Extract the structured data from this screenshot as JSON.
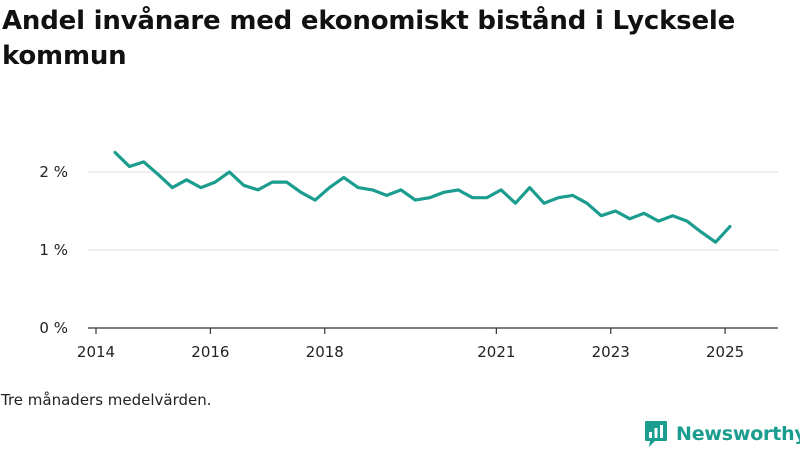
{
  "title": "Andel invånare med ekonomiskt bistånd i Lycksele kommun",
  "note": "Tre månaders medelvärden.",
  "brand": "Newsworthy",
  "colors": {
    "line": "#1a9c8e",
    "grid": "#dddddd",
    "axis": "#333333",
    "brand": "#1a9c8e"
  },
  "chart_data": {
    "type": "line",
    "title": "Andel invånare med ekonomiskt bistånd i Lycksele kommun",
    "xlabel": "",
    "ylabel": "",
    "x_ticks": [
      "2014",
      "2016",
      "2018",
      "2021",
      "2023",
      "2025"
    ],
    "y_ticks": [
      "0 %",
      "1 %",
      "2 %"
    ],
    "ylim": [
      0,
      2.5
    ],
    "grid": true,
    "x": [
      "2014-05",
      "2014-08",
      "2014-11",
      "2015-02",
      "2015-05",
      "2015-08",
      "2015-11",
      "2016-02",
      "2016-05",
      "2016-08",
      "2016-11",
      "2017-02",
      "2017-05",
      "2017-08",
      "2017-11",
      "2018-02",
      "2018-05",
      "2018-08",
      "2018-11",
      "2019-02",
      "2019-05",
      "2019-08",
      "2019-11",
      "2020-02",
      "2020-05",
      "2020-08",
      "2020-11",
      "2021-02",
      "2021-05",
      "2021-08",
      "2021-11",
      "2022-02",
      "2022-05",
      "2022-08",
      "2022-11",
      "2023-02",
      "2023-05",
      "2023-08",
      "2023-11",
      "2024-02",
      "2024-05",
      "2024-08",
      "2024-11",
      "2025-02"
    ],
    "series": [
      {
        "values": [
          2.25,
          2.07,
          2.13,
          1.97,
          1.8,
          1.9,
          1.8,
          1.87,
          2.0,
          1.83,
          1.77,
          1.87,
          1.87,
          1.74,
          1.64,
          1.8,
          1.93,
          1.8,
          1.77,
          1.7,
          1.77,
          1.64,
          1.67,
          1.74,
          1.77,
          1.67,
          1.67,
          1.77,
          1.6,
          1.8,
          1.6,
          1.67,
          1.7,
          1.6,
          1.44,
          1.5,
          1.4,
          1.47,
          1.37,
          1.44,
          1.37,
          1.23,
          1.1,
          1.3
        ]
      }
    ]
  }
}
